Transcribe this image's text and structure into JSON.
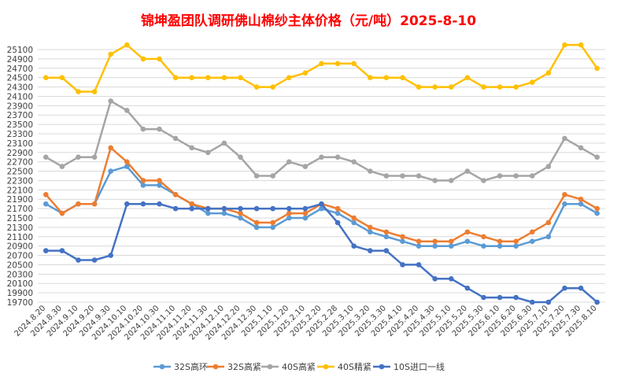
{
  "chart_data": {
    "type": "line",
    "title": "锦坤盈团队调研佛山棉纱主体价格（元/吨）2025-8-10",
    "title_color": "#ff0000",
    "xlabel": "",
    "ylabel": "",
    "ylim": [
      19700,
      25100
    ],
    "ytick_step": 200,
    "grid": true,
    "legend_position": "bottom",
    "categories": [
      "2024.8.20",
      "2024.8.30",
      "2024.9.10",
      "2024.9.20",
      "2024.9.30",
      "2024.10.10",
      "2024.10.20",
      "2024.10.30",
      "2024.11.10",
      "2024.11.20",
      "2024.11.30",
      "2024.12.10",
      "2024.12.20",
      "2024.12.30",
      "2025.1.10",
      "2025.1.20",
      "2025.2.10",
      "2025.2.20",
      "2025.2.28",
      "2025.3.10",
      "2025.3.20",
      "2025.3.30",
      "2025.4.10",
      "2025.4.20",
      "2025.4.30",
      "2025.5.10",
      "2025.5.20",
      "2025.5.30",
      "2025.6.10",
      "2025.6.20",
      "2025.6.30",
      "2025.7.10",
      "2025.7.20",
      "2025.7.30",
      "2025.8.10"
    ],
    "series": [
      {
        "name": "32S高环",
        "color": "#5b9bd5",
        "values": [
          21800,
          21600,
          21800,
          21800,
          22500,
          22600,
          22200,
          22200,
          22000,
          21800,
          21600,
          21600,
          21500,
          21300,
          21300,
          21500,
          21500,
          21700,
          21600,
          21400,
          21200,
          21100,
          21000,
          20900,
          20900,
          20900,
          21000,
          20900,
          20900,
          20900,
          21000,
          21100,
          21800,
          21800,
          21600
        ]
      },
      {
        "name": "32S高紧",
        "color": "#ed7d31",
        "values": [
          22000,
          21600,
          21800,
          21800,
          23000,
          22700,
          22300,
          22300,
          22000,
          21800,
          21700,
          21700,
          21600,
          21400,
          21400,
          21600,
          21600,
          21800,
          21700,
          21500,
          21300,
          21200,
          21100,
          21000,
          21000,
          21000,
          21200,
          21100,
          21000,
          21000,
          21200,
          21400,
          22000,
          21900,
          21700
        ]
      },
      {
        "name": "40S高紧",
        "color": "#a5a5a5",
        "values": [
          22800,
          22600,
          22800,
          22800,
          24000,
          23800,
          23400,
          23400,
          23200,
          23000,
          22900,
          23100,
          22800,
          22400,
          22400,
          22700,
          22600,
          22800,
          22800,
          22700,
          22500,
          22400,
          22400,
          22400,
          22300,
          22300,
          22500,
          22300,
          22400,
          22400,
          22400,
          22600,
          23200,
          23000,
          22800
        ]
      },
      {
        "name": "40S精紧",
        "color": "#ffc000",
        "values": [
          24500,
          24500,
          24200,
          24200,
          25000,
          25200,
          24900,
          24900,
          24500,
          24500,
          24500,
          24500,
          24500,
          24300,
          24300,
          24500,
          24600,
          24800,
          24800,
          24800,
          24500,
          24500,
          24500,
          24300,
          24300,
          24300,
          24500,
          24300,
          24300,
          24300,
          24400,
          24600,
          25200,
          25200,
          24700
        ]
      },
      {
        "name": "10S进口一线",
        "color": "#4472c4",
        "values": [
          20800,
          20800,
          20600,
          20600,
          20700,
          21800,
          21800,
          21800,
          21700,
          21700,
          21700,
          21700,
          21700,
          21700,
          21700,
          21700,
          21700,
          21800,
          21400,
          20900,
          20800,
          20800,
          20500,
          20500,
          20200,
          20200,
          20000,
          19800,
          19800,
          19800,
          19700,
          19700,
          20000,
          20000,
          19700
        ]
      }
    ]
  }
}
